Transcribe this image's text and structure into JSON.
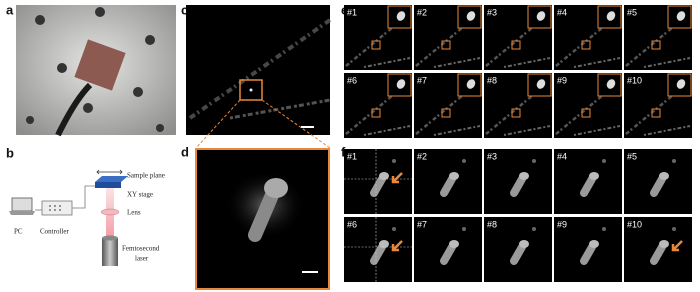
{
  "panels": {
    "a": {
      "label": "a"
    },
    "b": {
      "label": "b",
      "pc": "PC",
      "controller": "Controller",
      "sample_plane": "Sample plane",
      "xy_stage": "XY stage",
      "lens": "Lens",
      "laser": [
        "Femtosecond",
        "laser"
      ]
    },
    "c": {
      "label": "c"
    },
    "d": {
      "label": "d"
    },
    "e": {
      "label": "e",
      "frames": [
        "#1",
        "#2",
        "#3",
        "#4",
        "#5",
        "#6",
        "#7",
        "#8",
        "#9",
        "#10"
      ]
    },
    "f": {
      "label": "f",
      "frames": [
        "#1",
        "#2",
        "#3",
        "#4",
        "#5",
        "#6",
        "#7",
        "#8",
        "#9",
        "#10"
      ]
    }
  }
}
